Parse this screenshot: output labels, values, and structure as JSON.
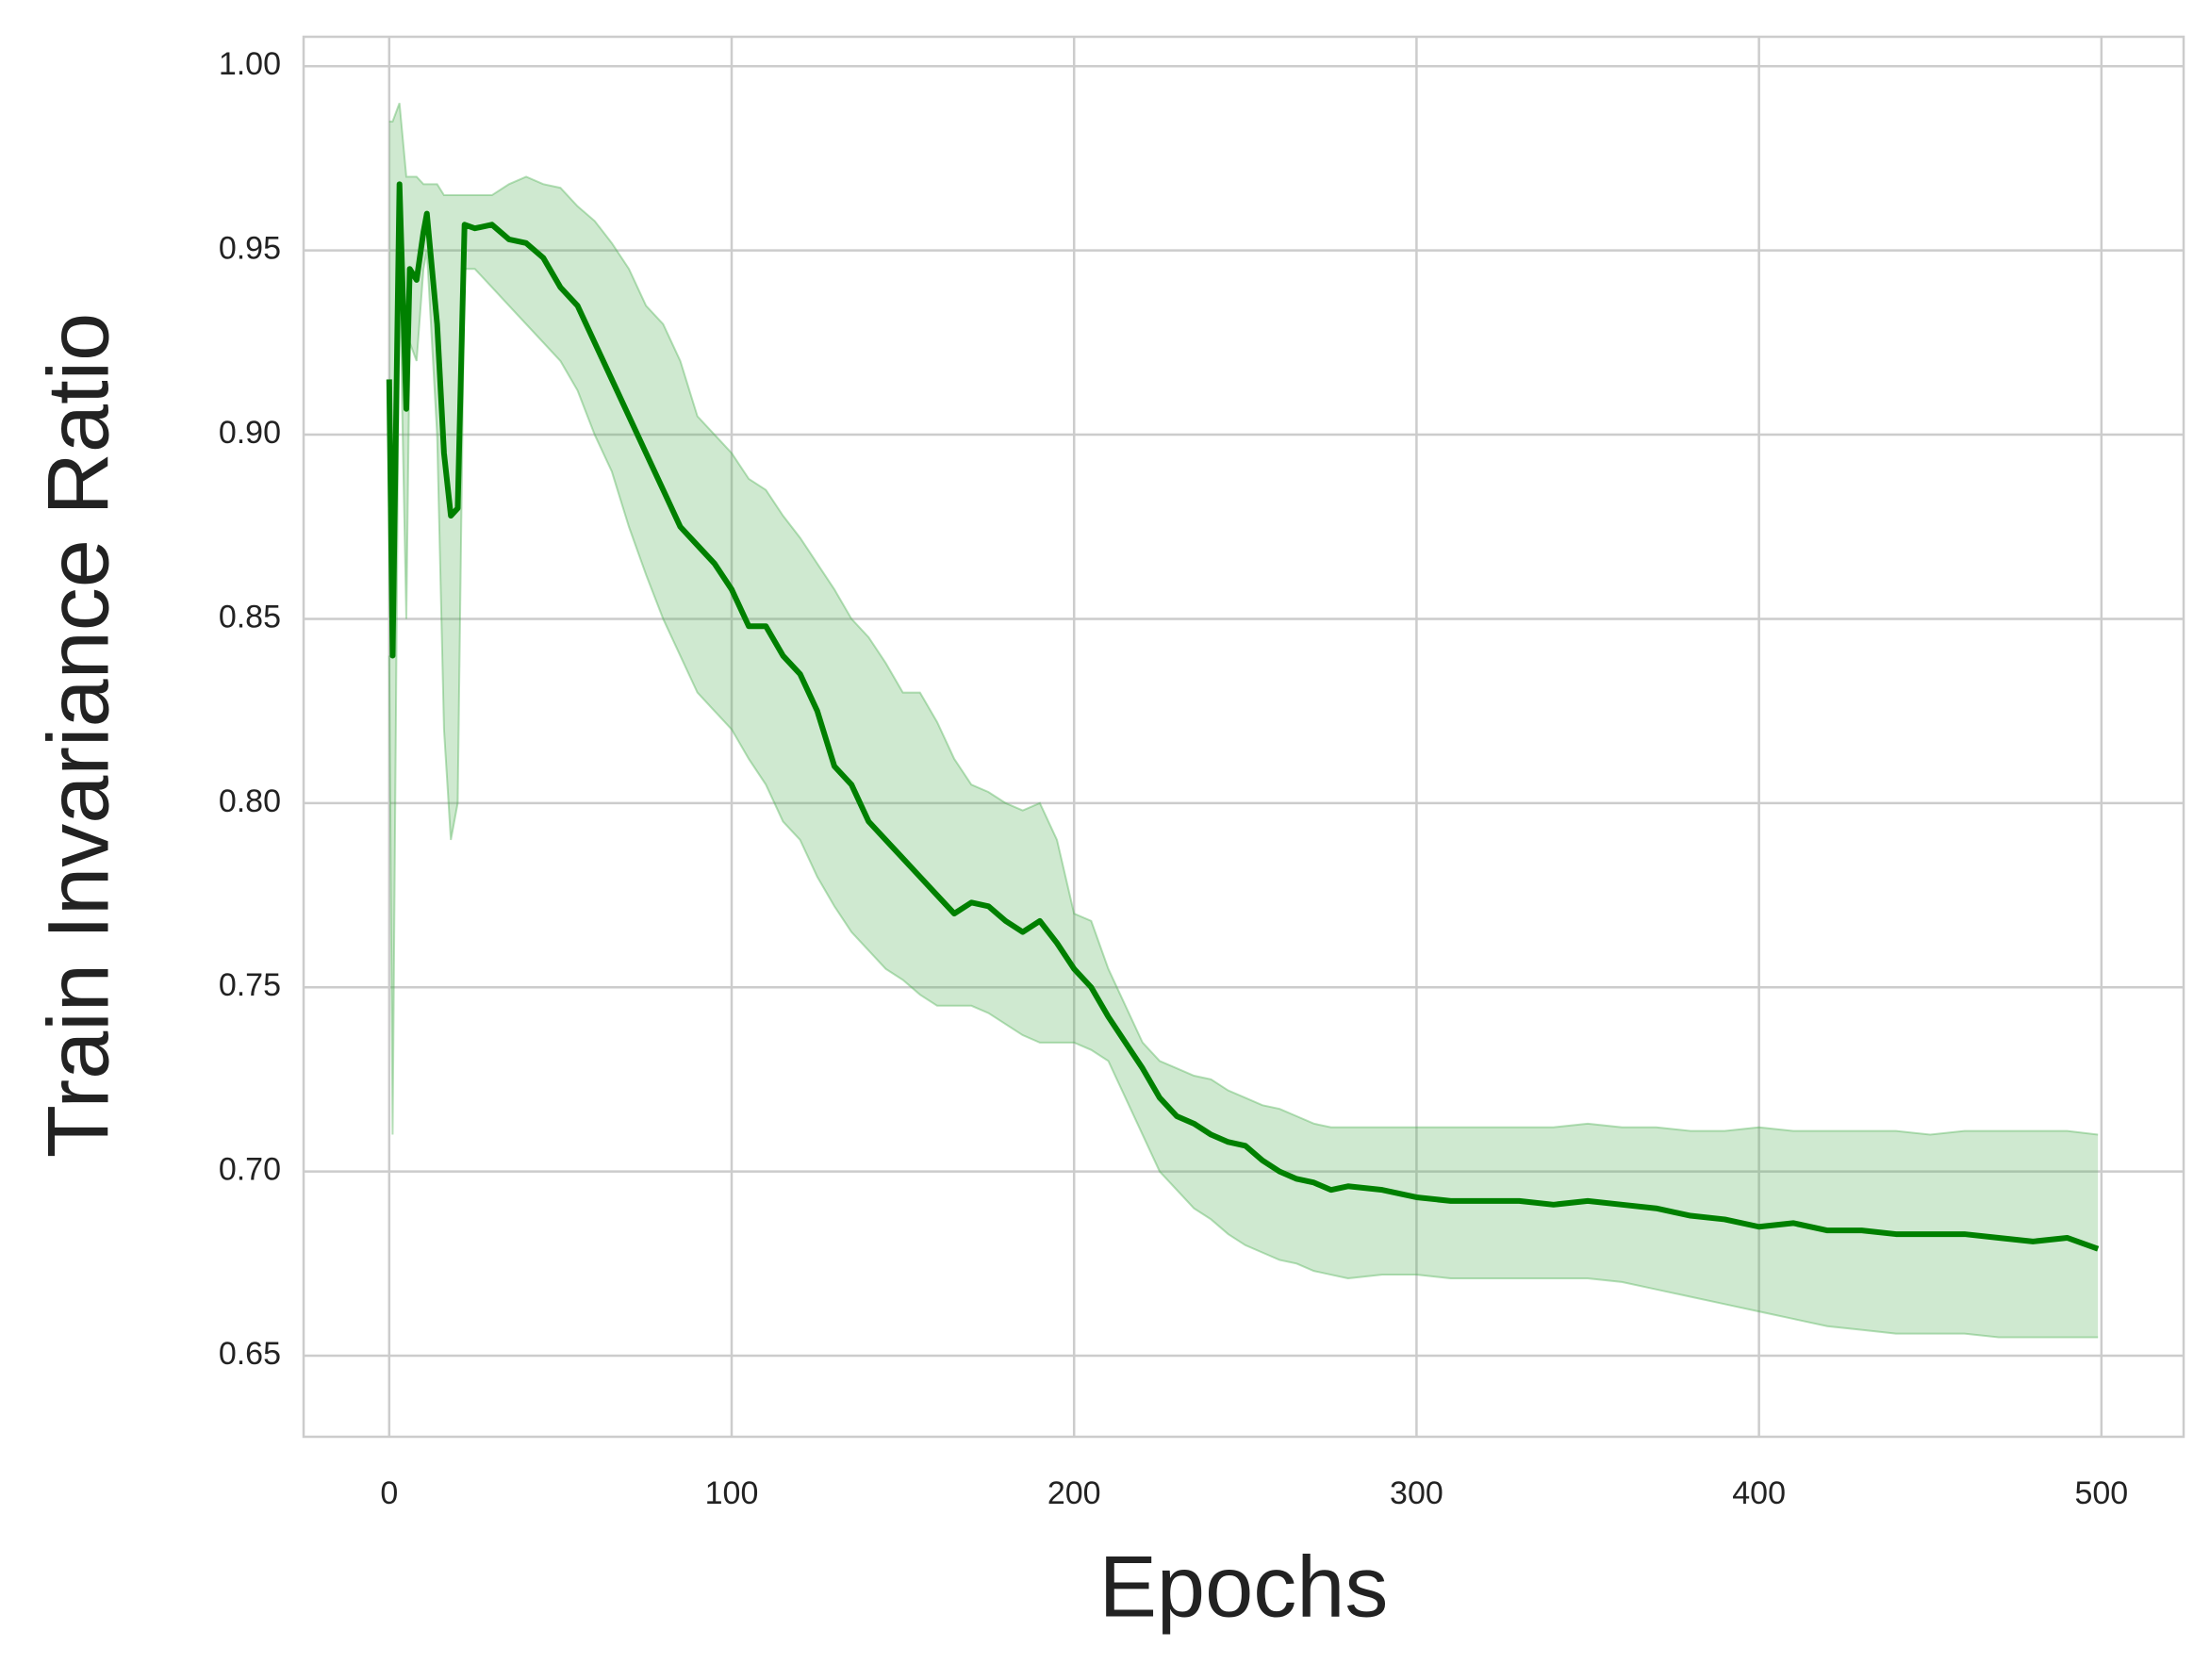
{
  "chart_data": {
    "type": "line",
    "x_label": "Epochs",
    "y_label": "Train Invariance Ratio",
    "color": "#008000",
    "band_color": "#4caf50",
    "grid": true,
    "xlim": [
      -25,
      524
    ],
    "ylim": [
      0.628,
      1.008
    ],
    "xticks": [
      0,
      100,
      200,
      300,
      400,
      500
    ],
    "yticks": [
      {
        "value": 0.65,
        "label": "0.65"
      },
      {
        "value": 0.7,
        "label": "0.70"
      },
      0.75,
      {
        "value": 0.8,
        "label": "0.80"
      },
      0.85,
      {
        "value": 0.9,
        "label": "0.90"
      },
      0.95,
      {
        "value": 1.0,
        "label": "1.00"
      }
    ],
    "x": [
      0,
      1,
      3,
      5,
      6,
      8,
      10,
      11,
      14,
      16,
      18,
      20,
      22,
      25,
      30,
      35,
      40,
      45,
      50,
      55,
      60,
      65,
      70,
      75,
      80,
      85,
      90,
      95,
      100,
      105,
      110,
      115,
      120,
      125,
      130,
      135,
      140,
      145,
      150,
      155,
      160,
      165,
      170,
      175,
      180,
      185,
      190,
      195,
      200,
      205,
      210,
      215,
      220,
      225,
      230,
      235,
      240,
      245,
      250,
      255,
      260,
      265,
      270,
      275,
      280,
      290,
      300,
      310,
      320,
      330,
      340,
      350,
      360,
      370,
      380,
      390,
      400,
      410,
      420,
      430,
      440,
      450,
      460,
      470,
      480,
      490,
      499
    ],
    "values": [
      0.915,
      0.84,
      0.968,
      0.907,
      0.945,
      0.942,
      0.955,
      0.96,
      0.93,
      0.895,
      0.878,
      0.88,
      0.957,
      0.956,
      0.957,
      0.953,
      0.952,
      0.948,
      0.94,
      0.935,
      0.925,
      0.915,
      0.905,
      0.895,
      0.885,
      0.875,
      0.87,
      0.865,
      0.858,
      0.848,
      0.848,
      0.84,
      0.835,
      0.825,
      0.81,
      0.805,
      0.795,
      0.79,
      0.785,
      0.78,
      0.775,
      0.77,
      0.773,
      0.772,
      0.768,
      0.765,
      0.768,
      0.762,
      0.755,
      0.75,
      0.742,
      0.735,
      0.728,
      0.72,
      0.715,
      0.713,
      0.71,
      0.708,
      0.707,
      0.703,
      0.7,
      0.698,
      0.697,
      0.695,
      0.696,
      0.695,
      0.693,
      0.692,
      0.692,
      0.692,
      0.691,
      0.692,
      0.691,
      0.69,
      0.688,
      0.687,
      0.685,
      0.686,
      0.684,
      0.684,
      0.683,
      0.683,
      0.683,
      0.682,
      0.681,
      0.682,
      0.679
    ],
    "band": {
      "upper": [
        0.985,
        0.985,
        0.99,
        0.97,
        0.97,
        0.97,
        0.968,
        0.968,
        0.968,
        0.965,
        0.965,
        0.965,
        0.965,
        0.965,
        0.965,
        0.968,
        0.97,
        0.968,
        0.967,
        0.962,
        0.958,
        0.952,
        0.945,
        0.935,
        0.93,
        0.92,
        0.905,
        0.9,
        0.895,
        0.888,
        0.885,
        0.878,
        0.872,
        0.865,
        0.858,
        0.85,
        0.845,
        0.838,
        0.83,
        0.83,
        0.822,
        0.812,
        0.805,
        0.803,
        0.8,
        0.798,
        0.8,
        0.79,
        0.77,
        0.768,
        0.755,
        0.745,
        0.735,
        0.73,
        0.728,
        0.726,
        0.725,
        0.722,
        0.72,
        0.718,
        0.717,
        0.715,
        0.713,
        0.712,
        0.712,
        0.712,
        0.712,
        0.712,
        0.712,
        0.712,
        0.712,
        0.713,
        0.712,
        0.712,
        0.711,
        0.711,
        0.712,
        0.711,
        0.711,
        0.711,
        0.711,
        0.71,
        0.711,
        0.711,
        0.711,
        0.711,
        0.71
      ],
      "lower": [
        0.84,
        0.71,
        0.945,
        0.85,
        0.925,
        0.92,
        0.945,
        0.95,
        0.9,
        0.82,
        0.79,
        0.8,
        0.945,
        0.945,
        0.94,
        0.935,
        0.93,
        0.925,
        0.92,
        0.912,
        0.9,
        0.89,
        0.875,
        0.862,
        0.85,
        0.84,
        0.83,
        0.825,
        0.82,
        0.812,
        0.805,
        0.795,
        0.79,
        0.78,
        0.772,
        0.765,
        0.76,
        0.755,
        0.752,
        0.748,
        0.745,
        0.745,
        0.745,
        0.743,
        0.74,
        0.737,
        0.735,
        0.735,
        0.735,
        0.733,
        0.73,
        0.72,
        0.71,
        0.7,
        0.695,
        0.69,
        0.687,
        0.683,
        0.68,
        0.678,
        0.676,
        0.675,
        0.673,
        0.672,
        0.671,
        0.672,
        0.672,
        0.671,
        0.671,
        0.671,
        0.671,
        0.671,
        0.67,
        0.668,
        0.666,
        0.664,
        0.662,
        0.66,
        0.658,
        0.657,
        0.656,
        0.656,
        0.656,
        0.655,
        0.655,
        0.655,
        0.655
      ]
    }
  }
}
